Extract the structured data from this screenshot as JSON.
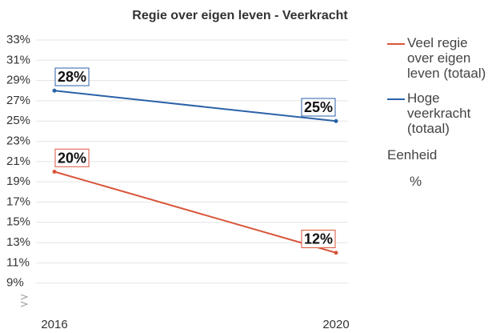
{
  "chart_data": {
    "type": "line",
    "title": "Regie over eigen leven - Veerkracht",
    "categories": [
      "2016",
      "2020"
    ],
    "series": [
      {
        "name": "Veel regie over eigen leven (totaal)",
        "color": "#d9553a",
        "values": [
          20,
          12
        ],
        "value_labels": [
          "20%",
          "12%"
        ]
      },
      {
        "name": "Hoge veerkracht (totaal)",
        "color": "#2a62a8",
        "values": [
          28,
          25
        ],
        "value_labels": [
          "28%",
          "25%"
        ]
      }
    ],
    "ylim": [
      7,
      33
    ],
    "yticks": [
      {
        "value": 9,
        "label": "9%"
      },
      {
        "value": 11,
        "label": "11%"
      },
      {
        "value": 13,
        "label": "13%"
      },
      {
        "value": 15,
        "label": "15%"
      },
      {
        "value": 17,
        "label": "17%"
      },
      {
        "value": 19,
        "label": "19%"
      },
      {
        "value": 21,
        "label": "21%"
      },
      {
        "value": 23,
        "label": "23%"
      },
      {
        "value": 25,
        "label": "25%"
      },
      {
        "value": 27,
        "label": "27%"
      },
      {
        "value": 29,
        "label": "29%"
      },
      {
        "value": 31,
        "label": "31%"
      },
      {
        "value": 33,
        "label": "33%"
      }
    ],
    "grid": true,
    "legend_title": "Eenheid",
    "unit": "%"
  }
}
